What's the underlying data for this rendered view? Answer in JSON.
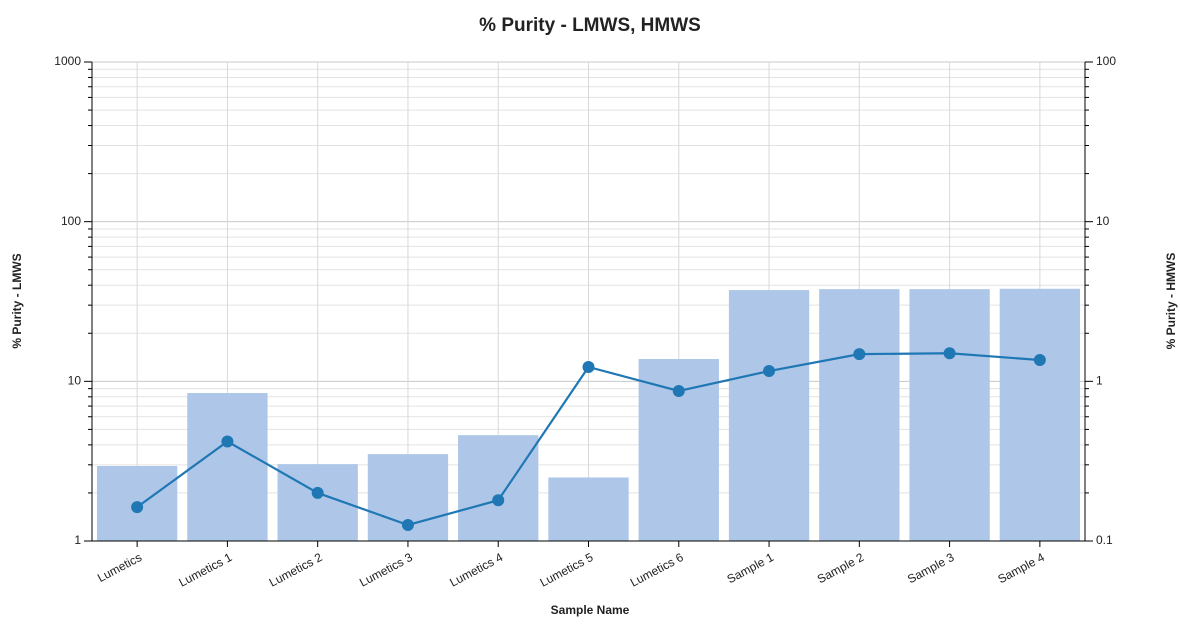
{
  "chart_data": {
    "type": "bar",
    "title": "% Purity - LMWS, HMWS",
    "x_label": "Sample Name",
    "y_label": "% Purity - LMWS",
    "y2_label": "% Purity - HMWS",
    "categories": [
      "Lumetics",
      "Lumetics 1",
      "Lumetics 2",
      "Lumetics 3",
      "Lumetics 4",
      "Lumetics 5",
      "Lumetics 6",
      "Sample 1",
      "Sample 2",
      "Sample 3",
      "Sample 4"
    ],
    "series": [
      {
        "type": "bar",
        "color": "#aec7e8",
        "values": [
          2.95,
          8.45,
          3.03,
          3.5,
          4.6,
          2.5,
          13.8,
          37.3,
          37.8,
          37.8,
          38
        ]
      },
      {
        "type": "line",
        "axis": "y2",
        "color": "#1f77b4",
        "values": [
          0.163,
          0.42,
          0.2,
          0.126,
          0.18,
          1.23,
          0.87,
          1.16,
          1.48,
          1.5,
          1.36
        ]
      }
    ],
    "log_scale": true,
    "grid": true,
    "ylim": [
      1,
      1000
    ],
    "yticks": [
      1,
      10,
      100,
      1000
    ],
    "y2lim": [
      0.1,
      100
    ],
    "y2ticks": [
      0.1,
      1,
      10,
      100
    ]
  }
}
